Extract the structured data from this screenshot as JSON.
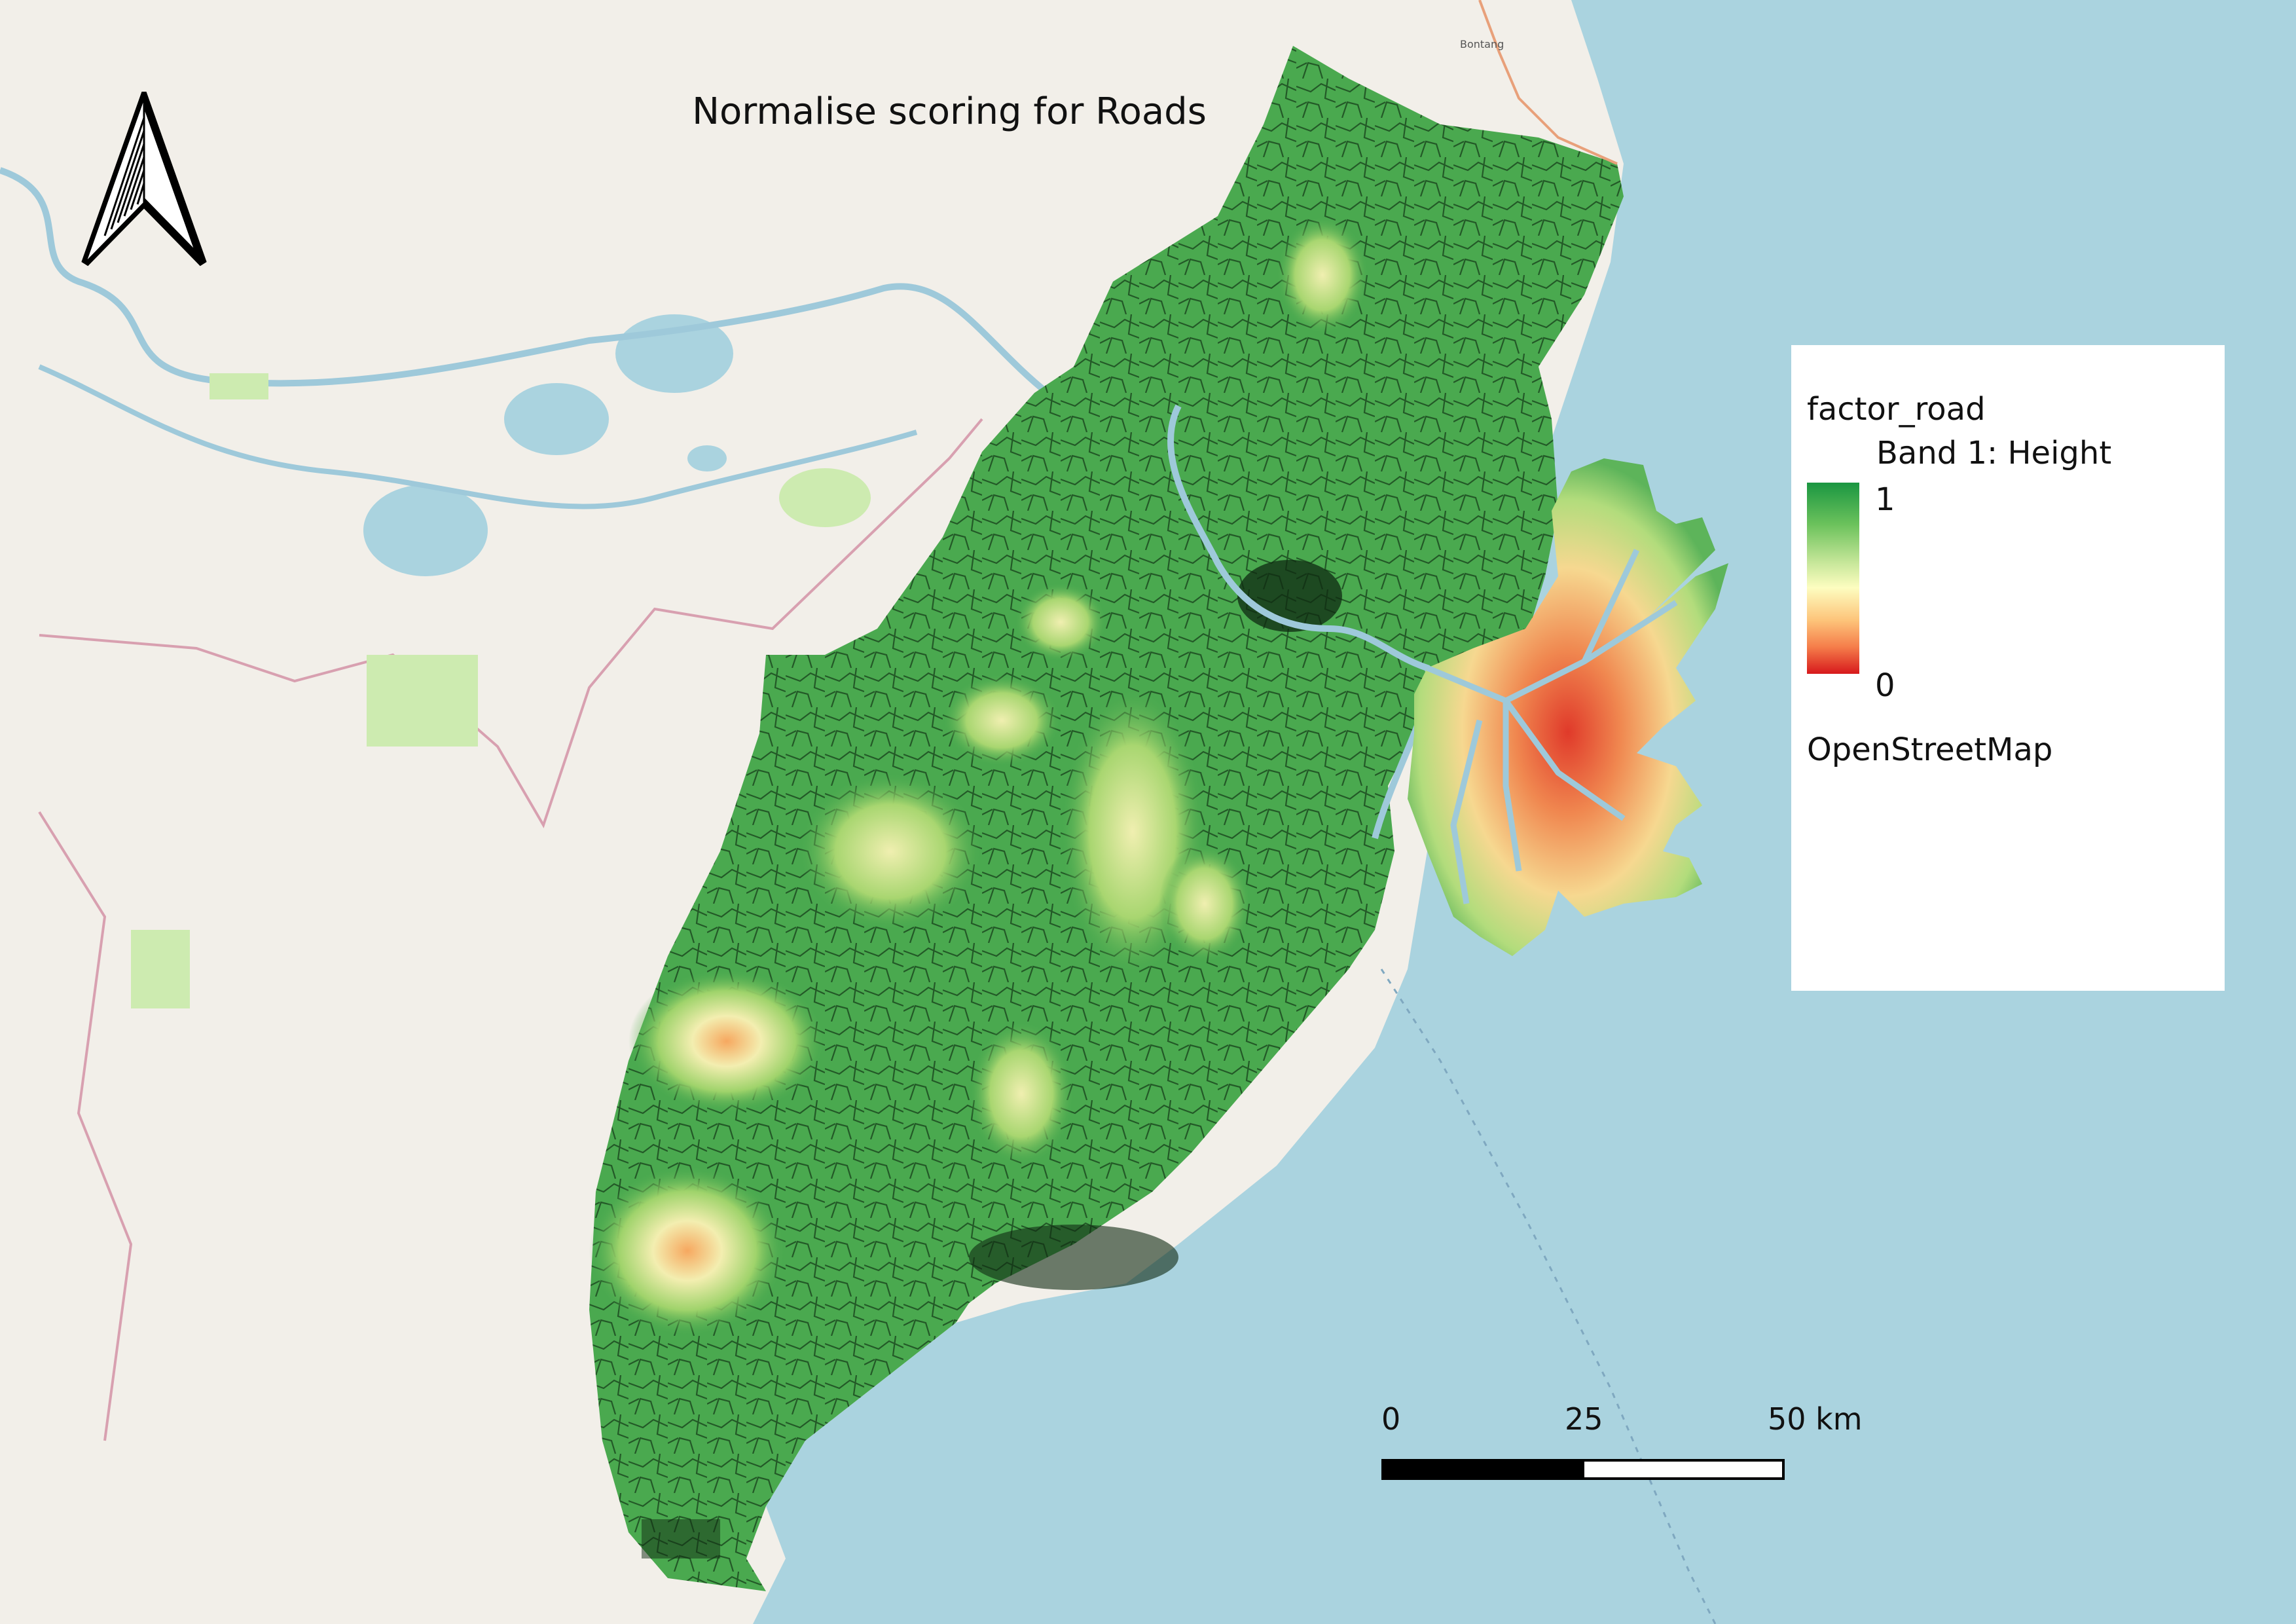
{
  "map": {
    "title": "Normalise scoring for Roads",
    "basemap": "OpenStreetMap",
    "water_color": "#aad3df",
    "land_color": "#f2efe9"
  },
  "legend": {
    "layer_name": "factor_road",
    "band_label": "Band 1: Height",
    "max_label": "1",
    "min_label": "0",
    "basemap_label": "OpenStreetMap",
    "ramp_colors": [
      "#1a9641",
      "#a6d96a",
      "#ffffbf",
      "#fdae61",
      "#d7191c"
    ]
  },
  "scale_bar": {
    "label_0": "0",
    "label_mid": "25",
    "label_end": "50 km"
  },
  "north_arrow": {
    "icon": "north-arrow-icon"
  },
  "place_labels": [
    "Bontang"
  ]
}
